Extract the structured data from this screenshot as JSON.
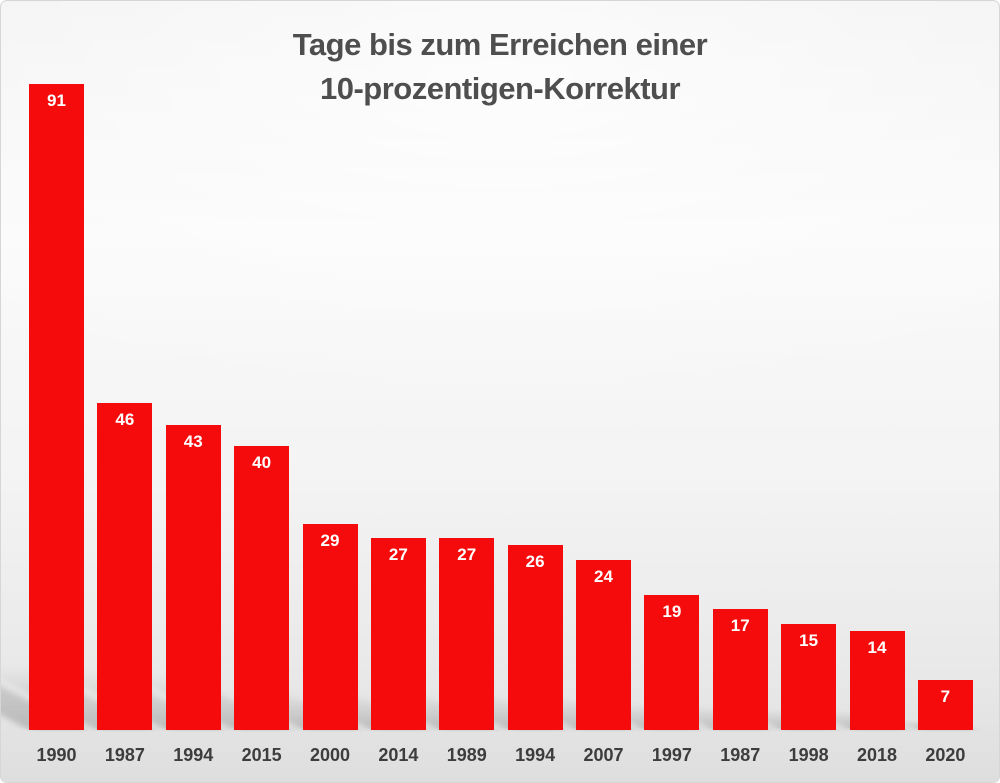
{
  "title": {
    "line1": "Tage bis zum Erreichen einer",
    "line2": "10-prozentigen-Korrektur"
  },
  "chart_data": {
    "type": "bar",
    "title": "Tage bis zum Erreichen einer 10-prozentigen-Korrektur",
    "categories": [
      "1990",
      "1987",
      "1994",
      "2015",
      "2000",
      "2014",
      "1989",
      "1994",
      "2007",
      "1997",
      "1987",
      "1998",
      "2018",
      "2020"
    ],
    "values": [
      91,
      46,
      43,
      40,
      29,
      27,
      27,
      26,
      24,
      19,
      17,
      15,
      14,
      7
    ],
    "xlabel": "",
    "ylabel": "",
    "ylim": [
      0,
      91
    ],
    "grid": false,
    "legend": false,
    "bar_color": "#f50b0b",
    "value_label_color": "#ffffff",
    "axis_label_color": "#3d3d3d",
    "title_color": "#4e4e4e"
  }
}
